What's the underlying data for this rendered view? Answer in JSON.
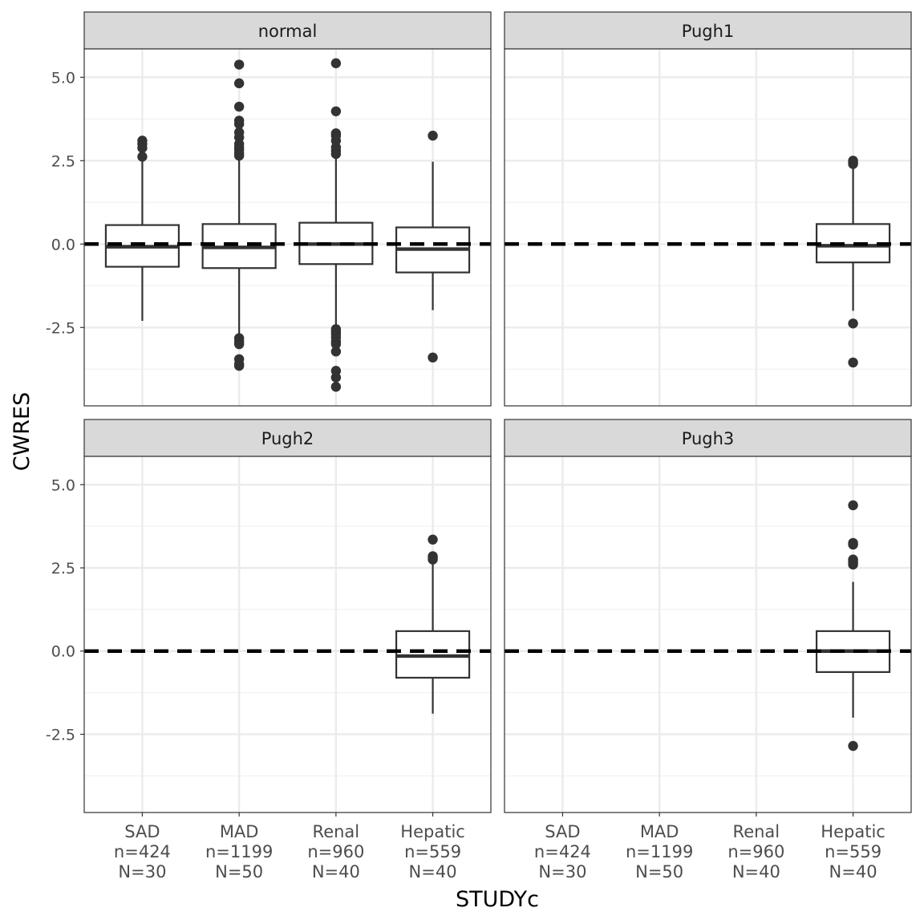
{
  "chart_data": {
    "type": "boxplot",
    "xlabel": "STUDYc",
    "ylabel": "CWRES",
    "ylim": [
      -4.85,
      5.85
    ],
    "y_ticks": [
      -2.5,
      0.0,
      2.5,
      5.0
    ],
    "y_tick_labels": [
      "-2.5",
      "0.0",
      "2.5",
      "5.0"
    ],
    "reference_line": 0,
    "categories": [
      {
        "name": "SAD",
        "n": "n=424",
        "N": "N=30"
      },
      {
        "name": "MAD",
        "n": "n=1199",
        "N": "N=50"
      },
      {
        "name": "Renal",
        "n": "n=960",
        "N": "N=40"
      },
      {
        "name": "Hepatic",
        "n": "n=559",
        "N": "N=40"
      }
    ],
    "panels": [
      {
        "title": "normal",
        "boxes": [
          {
            "category": "SAD",
            "lower_whisker": -2.3,
            "q1": -0.68,
            "median": -0.08,
            "q3": 0.57,
            "upper_whisker": 2.55,
            "outliers": [
              3.1,
              3.0,
              2.88,
              2.62
            ]
          },
          {
            "category": "MAD",
            "lower_whisker": -2.75,
            "q1": -0.72,
            "median": -0.1,
            "q3": 0.6,
            "upper_whisker": 2.6,
            "outliers": [
              5.38,
              4.82,
              4.12,
              3.7,
              3.6,
              3.35,
              3.2,
              3.0,
              2.9,
              2.82,
              2.72,
              2.65,
              -2.82,
              -2.92,
              -3.0,
              -3.45,
              -3.6,
              -3.65
            ]
          },
          {
            "category": "Renal",
            "lower_whisker": -2.45,
            "q1": -0.6,
            "median": 0.0,
            "q3": 0.64,
            "upper_whisker": 2.62,
            "outliers": [
              5.42,
              3.98,
              3.32,
              3.25,
              3.1,
              2.9,
              2.8,
              2.7,
              -2.55,
              -2.62,
              -2.7,
              -2.8,
              -2.92,
              -3.0,
              -3.22,
              -3.8,
              -4.0,
              -4.28
            ]
          },
          {
            "category": "Hepatic",
            "lower_whisker": -1.98,
            "q1": -0.85,
            "median": -0.15,
            "q3": 0.5,
            "upper_whisker": 2.47,
            "outliers": [
              3.25,
              -3.4
            ]
          }
        ]
      },
      {
        "title": "Pugh1",
        "boxes": [
          {
            "category": "Hepatic",
            "lower_whisker": -2.0,
            "q1": -0.55,
            "median": -0.05,
            "q3": 0.6,
            "upper_whisker": 2.35,
            "outliers": [
              2.5,
              2.45,
              2.4,
              -2.38,
              -3.55
            ]
          }
        ]
      },
      {
        "title": "Pugh2",
        "boxes": [
          {
            "category": "Hepatic",
            "lower_whisker": -1.88,
            "q1": -0.8,
            "median": -0.15,
            "q3": 0.6,
            "upper_whisker": 2.65,
            "outliers": [
              3.35,
              2.85,
              2.8,
              2.75
            ]
          }
        ]
      },
      {
        "title": "Pugh3",
        "boxes": [
          {
            "category": "Hepatic",
            "lower_whisker": -2.0,
            "q1": -0.63,
            "median": 0.0,
            "q3": 0.6,
            "upper_whisker": 2.08,
            "outliers": [
              4.38,
              3.25,
              3.2,
              2.75,
              2.7,
              2.65,
              2.6,
              -2.85
            ]
          }
        ]
      }
    ]
  }
}
